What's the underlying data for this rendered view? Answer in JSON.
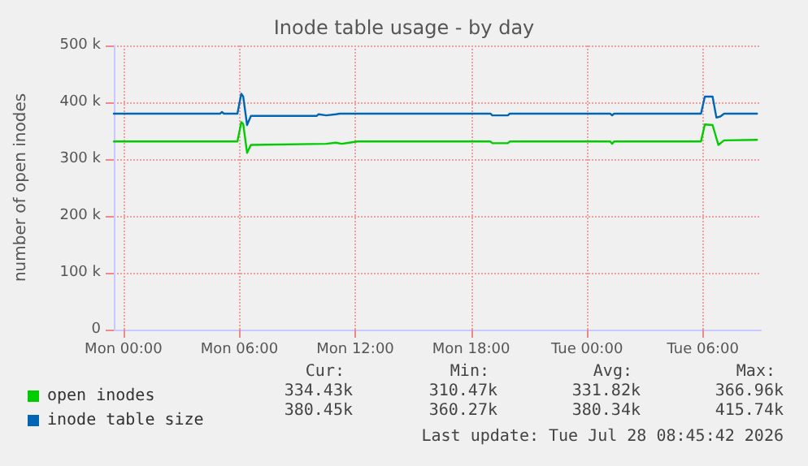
{
  "chart_data": {
    "type": "line",
    "title": "Inode table usage - by day",
    "ylabel": "number of open inodes",
    "xlim": [
      "2026-07-26T23:30",
      "2026-07-28T09:00"
    ],
    "xticks": [
      {
        "value": "2026-07-27T00:00",
        "label": "Mon 00:00"
      },
      {
        "value": "2026-07-27T06:00",
        "label": "Mon 06:00"
      },
      {
        "value": "2026-07-27T12:00",
        "label": "Mon 12:00"
      },
      {
        "value": "2026-07-27T18:00",
        "label": "Mon 18:00"
      },
      {
        "value": "2026-07-28T00:00",
        "label": "Tue 00:00"
      },
      {
        "value": "2026-07-28T06:00",
        "label": "Tue 06:00"
      }
    ],
    "ylim": [
      0,
      500000
    ],
    "yticks": [
      {
        "value": 0,
        "label": "0"
      },
      {
        "value": 100000,
        "label": "100 k"
      },
      {
        "value": 200000,
        "label": "200 k"
      },
      {
        "value": 300000,
        "label": "300 k"
      },
      {
        "value": 400000,
        "label": "400 k"
      },
      {
        "value": 500000,
        "label": "500 k"
      }
    ],
    "grid": true,
    "legend": "bottom left",
    "marker": "none",
    "line_style": "solid",
    "series": [
      {
        "name": "open inodes",
        "color": "#00cc00",
        "x": [
          "2026-07-26T23:30",
          "2026-07-27T05:54",
          "2026-07-27T06:06",
          "2026-07-27T06:12",
          "2026-07-27T06:24",
          "2026-07-27T06:36",
          "2026-07-27T10:30",
          "2026-07-27T11:00",
          "2026-07-27T11:18",
          "2026-07-27T11:42",
          "2026-07-27T12:06",
          "2026-07-27T19:00",
          "2026-07-27T19:06",
          "2026-07-27T19:54",
          "2026-07-27T20:00",
          "2026-07-28T01:12",
          "2026-07-28T01:18",
          "2026-07-28T01:24",
          "2026-07-28T05:54",
          "2026-07-28T06:06",
          "2026-07-28T06:30",
          "2026-07-28T06:48",
          "2026-07-28T07:06",
          "2026-07-28T08:48"
        ],
        "values": [
          331000,
          331000,
          365000,
          362000,
          311000,
          325000,
          327000,
          329000,
          327000,
          329000,
          331000,
          331000,
          328000,
          328000,
          331000,
          331000,
          327000,
          331000,
          331000,
          361000,
          360000,
          325000,
          333000,
          334000
        ]
      },
      {
        "name": "inode table size",
        "color": "#0066b3",
        "x": [
          "2026-07-26T23:30",
          "2026-07-27T05:00",
          "2026-07-27T05:06",
          "2026-07-27T05:12",
          "2026-07-27T05:54",
          "2026-07-27T06:06",
          "2026-07-27T06:12",
          "2026-07-27T06:24",
          "2026-07-27T06:36",
          "2026-07-27T10:00",
          "2026-07-27T10:06",
          "2026-07-27T10:30",
          "2026-07-27T11:00",
          "2026-07-27T11:12",
          "2026-07-27T19:00",
          "2026-07-27T19:06",
          "2026-07-27T19:54",
          "2026-07-27T20:00",
          "2026-07-28T01:12",
          "2026-07-28T01:18",
          "2026-07-28T01:24",
          "2026-07-28T05:54",
          "2026-07-28T06:06",
          "2026-07-28T06:30",
          "2026-07-28T06:42",
          "2026-07-28T06:54",
          "2026-07-28T07:06",
          "2026-07-28T08:48"
        ],
        "values": [
          380000,
          380000,
          383000,
          380000,
          380000,
          415000,
          410000,
          360000,
          376000,
          376000,
          379000,
          377000,
          379000,
          380000,
          380000,
          377000,
          377000,
          380000,
          380000,
          377000,
          380000,
          380000,
          410000,
          410000,
          373000,
          375000,
          380000,
          380000
        ]
      }
    ],
    "annotations": [
      "Cur:",
      "Min:",
      "Avg:",
      "Max:",
      "334.43k",
      "310.47k",
      "331.82k",
      "366.96k",
      "380.45k",
      "360.27k",
      "380.34k",
      "415.74k",
      "Last update: Tue Jul 28 08:45:42 2026"
    ]
  }
}
